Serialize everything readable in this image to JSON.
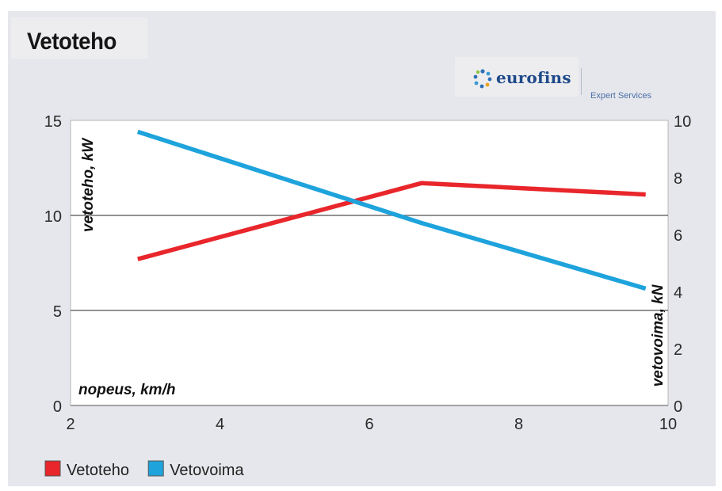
{
  "chart_data": {
    "type": "line",
    "title": "Vetoteho",
    "xlabel": "nopeus, km/h",
    "ylabel_left": "vetoteho, kW",
    "ylabel_right": "vetovoima, kN",
    "xlim": [
      2,
      10
    ],
    "ylim_left": [
      0,
      15
    ],
    "ylim_right": [
      0,
      10
    ],
    "x_ticks": [
      "2",
      "4",
      "6",
      "8",
      "10"
    ],
    "y_ticks_left": [
      "0",
      "5",
      "10",
      "15"
    ],
    "y_ticks_right": [
      "0",
      "2",
      "4",
      "6",
      "8",
      "10"
    ],
    "grid_y": true,
    "legend_position": "bottom-left",
    "series": [
      {
        "name": "Vetoteho",
        "axis": "left",
        "color": "#e8262b",
        "x": [
          2.9,
          6.7,
          9.7
        ],
        "y": [
          7.7,
          11.7,
          11.1
        ]
      },
      {
        "name": "Vetovoima",
        "axis": "right",
        "color": "#1ea3dc",
        "x": [
          2.9,
          6.7,
          9.7
        ],
        "y": [
          9.6,
          6.4,
          4.1
        ]
      }
    ]
  },
  "branding": {
    "logo_text": "eurofins",
    "logo_tagline": "Expert Services",
    "logo_icon": "eurofins-dots-icon"
  }
}
